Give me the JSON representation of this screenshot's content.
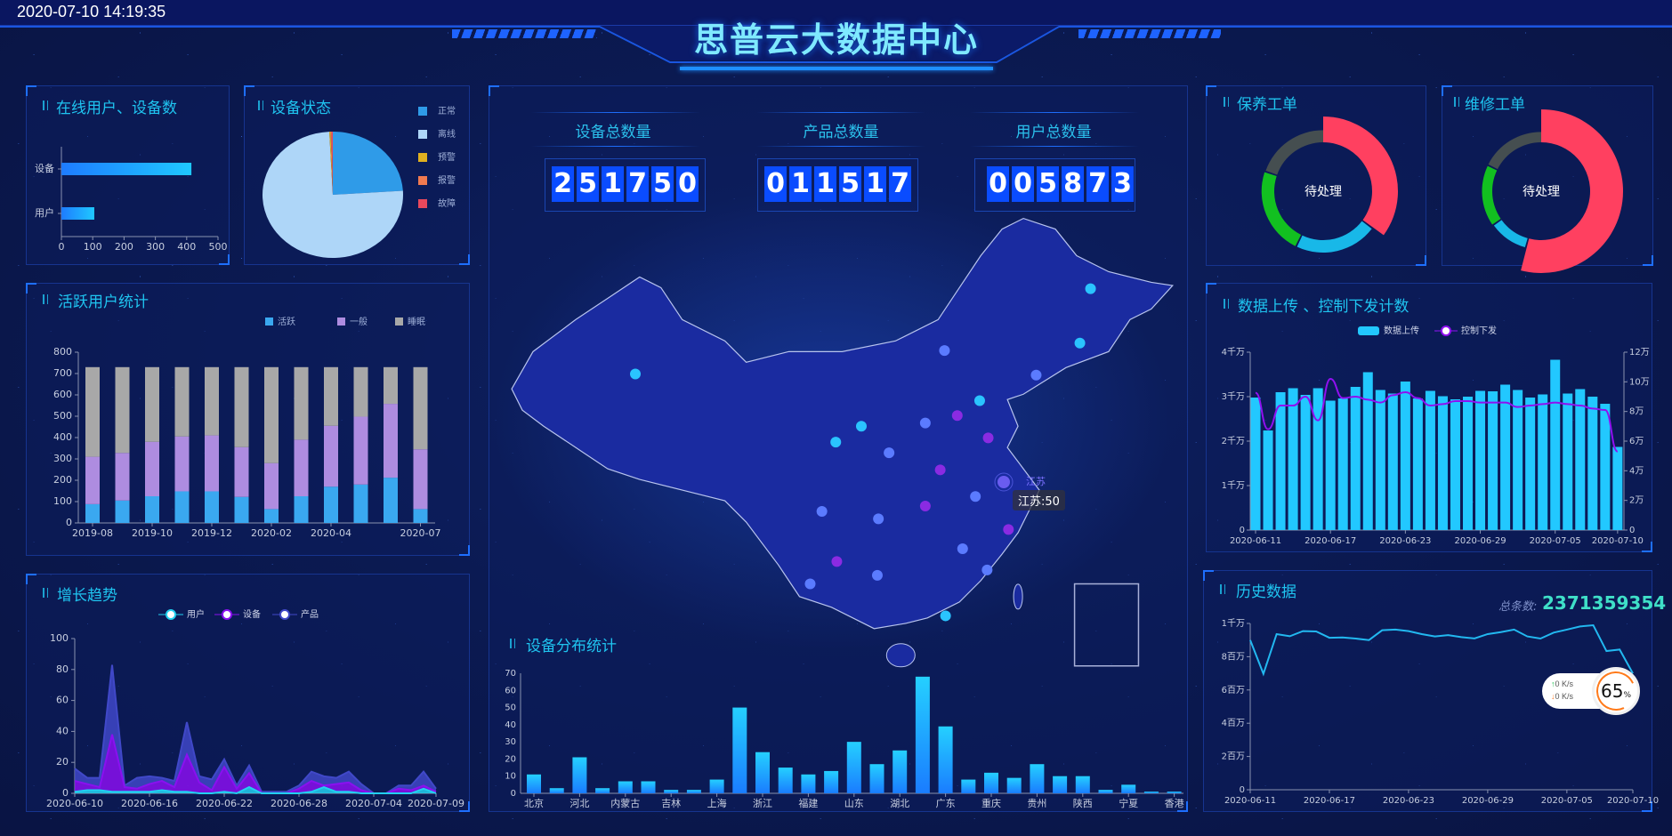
{
  "header": {
    "datetime": "2020-07-10 14:19:35",
    "title": "思普云大数据中心"
  },
  "panels": {
    "online": {
      "title": "在线用户、设备数"
    },
    "status": {
      "title": "设备状态"
    },
    "active": {
      "title": "活跃用户统计"
    },
    "growth": {
      "title": "增长趋势"
    },
    "maintenance": {
      "title": "保养工单",
      "center": "待处理"
    },
    "repair": {
      "title": "维修工单",
      "center": "待处理"
    },
    "upload": {
      "title": "数据上传 、控制下发计数"
    },
    "history": {
      "title": "历史数据",
      "total_label": "总条数:",
      "total_value": "2371359354"
    },
    "distribution": {
      "title": "设备分布统计"
    }
  },
  "stats": [
    {
      "label": "设备总数量",
      "value": "251750"
    },
    {
      "label": "产品总数量",
      "value": "011517"
    },
    {
      "label": "用户总数量",
      "value": "005873"
    }
  ],
  "map": {
    "highlight_label": "江苏",
    "tooltip": "江苏:50",
    "dot_colors": [
      "#2ac4ff",
      "#5b7bff",
      "#8a2be2"
    ],
    "fill": "#1a2ba0",
    "stroke": "#b8c4ee"
  },
  "net_widget": {
    "up": "0",
    "down": "0",
    "unit": "K/s",
    "percent": "65",
    "percent_sign": "%"
  },
  "chart_data": [
    {
      "type": "bar",
      "orientation": "horizontal",
      "categories": [
        "设备",
        "用户"
      ],
      "values": [
        415,
        105
      ],
      "xlim": [
        0,
        500
      ],
      "xticks": [
        0,
        100,
        200,
        300,
        400,
        500
      ],
      "color": "#1fc8ff"
    },
    {
      "type": "pie",
      "labels": [
        "正常",
        "离线",
        "预警",
        "报警",
        "故障"
      ],
      "values": [
        240,
        752,
        3,
        2,
        3
      ],
      "colors": [
        "#2f9be8",
        "#aed6f8",
        "#e0b020",
        "#f07a50",
        "#e8485c"
      ],
      "legend": "right"
    },
    {
      "type": "bar",
      "stacked": true,
      "categories": [
        "2019-08",
        "2019-09",
        "2019-10",
        "2019-11",
        "2019-12",
        "2020-01",
        "2020-02",
        "2020-03",
        "2020-04",
        "2020-05",
        "2020-06",
        "2020-07"
      ],
      "xtick_labels": [
        "2019-08",
        "",
        "2019-10",
        "",
        "2019-12",
        "",
        "2020-02",
        "",
        "2020-04",
        "",
        "",
        "2020-07"
      ],
      "series": [
        {
          "name": "活跃",
          "color": "#3aa8f0",
          "values": [
            88,
            105,
            125,
            148,
            148,
            122,
            65,
            125,
            170,
            180,
            212,
            65
          ]
        },
        {
          "name": "一般",
          "color": "#ae8ce0",
          "values": [
            222,
            223,
            255,
            257,
            262,
            233,
            215,
            265,
            285,
            318,
            346,
            280
          ]
        },
        {
          "name": "睡眠",
          "color": "#a8a8a8",
          "values": [
            420,
            402,
            350,
            325,
            320,
            375,
            450,
            340,
            275,
            232,
            172,
            385
          ]
        }
      ],
      "ylim": [
        0,
        800
      ],
      "yticks": [
        0,
        100,
        200,
        300,
        400,
        500,
        600,
        700,
        800
      ],
      "legend": "top-right"
    },
    {
      "type": "area",
      "stacked": true,
      "x": [
        "2020-06-10",
        "2020-06-11",
        "2020-06-12",
        "2020-06-13",
        "2020-06-14",
        "2020-06-15",
        "2020-06-16",
        "2020-06-17",
        "2020-06-18",
        "2020-06-19",
        "2020-06-20",
        "2020-06-21",
        "2020-06-22",
        "2020-06-23",
        "2020-06-24",
        "2020-06-25",
        "2020-06-26",
        "2020-06-27",
        "2020-06-28",
        "2020-06-29",
        "2020-06-30",
        "2020-07-01",
        "2020-07-02",
        "2020-07-03",
        "2020-07-04",
        "2020-07-05",
        "2020-07-06",
        "2020-07-07",
        "2020-07-08",
        "2020-07-09"
      ],
      "series": [
        {
          "name": "用户",
          "color": "#22d0f0",
          "values": [
            1,
            2,
            2,
            1,
            1,
            1,
            1,
            2,
            1,
            1,
            0,
            0,
            1,
            0,
            4,
            0,
            0,
            0,
            0,
            1,
            4,
            1,
            1,
            0,
            0,
            0,
            0,
            0,
            3,
            0
          ]
        },
        {
          "name": "设备",
          "color": "#8a10f0",
          "values": [
            7,
            4,
            2,
            37,
            3,
            2,
            5,
            6,
            3,
            24,
            7,
            2,
            16,
            3,
            9,
            0,
            0,
            0,
            3,
            7,
            1,
            5,
            6,
            2,
            0,
            0,
            3,
            2,
            2,
            1
          ]
        },
        {
          "name": "产品",
          "color": "#4048c8",
          "values": [
            8,
            4,
            6,
            45,
            1,
            7,
            5,
            2,
            4,
            21,
            4,
            7,
            5,
            2,
            5,
            1,
            1,
            1,
            2,
            6,
            6,
            4,
            7,
            4,
            0,
            0,
            2,
            3,
            9,
            2
          ]
        }
      ],
      "ylim": [
        0,
        100
      ],
      "yticks": [
        0,
        20,
        40,
        60,
        80,
        100
      ],
      "legend": "top"
    },
    {
      "type": "bar",
      "categories": [
        "北京",
        "",
        "河北",
        "",
        "内蒙古",
        "",
        "吉林",
        "",
        "上海",
        "江苏",
        "浙江",
        "",
        "福建",
        "",
        "山东",
        "",
        "湖北",
        "",
        "广东",
        "",
        "重庆",
        "",
        "贵州",
        "",
        "陕西",
        "",
        "宁夏",
        "",
        "香港"
      ],
      "values": [
        11,
        3,
        21,
        3,
        7,
        7,
        2,
        2,
        8,
        50,
        24,
        15,
        11,
        13,
        30,
        17,
        25,
        68,
        39,
        8,
        12,
        9,
        17,
        10,
        10,
        2,
        5,
        1,
        1
      ],
      "ylim": [
        0,
        70
      ],
      "yticks": [
        0,
        10,
        20,
        30,
        40,
        50,
        60,
        70
      ]
    },
    {
      "type": "pie",
      "variant": "rose-donut",
      "values": [
        35,
        22,
        23,
        20
      ],
      "colors": [
        "#ff4060",
        "#18b8e8",
        "#12c020",
        "#454e50"
      ]
    },
    {
      "type": "pie",
      "variant": "rose-donut",
      "values": [
        54,
        11,
        17,
        18
      ],
      "colors": [
        "#ff4060",
        "#18b8e8",
        "#12c020",
        "#454e50"
      ]
    },
    {
      "type": "bar+line",
      "x": [
        "2020-06-11",
        "2020-06-12",
        "2020-06-13",
        "2020-06-14",
        "2020-06-15",
        "2020-06-16",
        "2020-06-17",
        "2020-06-18",
        "2020-06-19",
        "2020-06-20",
        "2020-06-21",
        "2020-06-22",
        "2020-06-23",
        "2020-06-24",
        "2020-06-25",
        "2020-06-26",
        "2020-06-27",
        "2020-06-28",
        "2020-06-29",
        "2020-06-30",
        "2020-07-01",
        "2020-07-02",
        "2020-07-03",
        "2020-07-04",
        "2020-07-05",
        "2020-07-06",
        "2020-07-07",
        "2020-07-08",
        "2020-07-09",
        "2020-07-10"
      ],
      "series": [
        {
          "name": "数据上传",
          "axis": "left",
          "color": "#22c8ff",
          "values": [
            29800000,
            22400000,
            31000000,
            31900000,
            30400000,
            31900000,
            29100000,
            29600000,
            32200000,
            35500000,
            31500000,
            30700000,
            33400000,
            29600000,
            31300000,
            30100000,
            29400000,
            30000000,
            31300000,
            31200000,
            32700000,
            31500000,
            29800000,
            30500000,
            38300000,
            30700000,
            31700000,
            30000000,
            28400000,
            18700000
          ]
        },
        {
          "name": "控制下发",
          "axis": "right",
          "color": "#9010f0",
          "values": [
            92600,
            68000,
            84000,
            84000,
            90000,
            74000,
            102000,
            89000,
            90000,
            88000,
            86000,
            91000,
            93000,
            89000,
            84000,
            85000,
            87000,
            87000,
            86000,
            86000,
            86000,
            83000,
            84000,
            85000,
            86000,
            85000,
            84000,
            82000,
            81000,
            53000
          ]
        }
      ],
      "ylim_left": [
        0,
        40000000
      ],
      "yticks_left": [
        "0",
        "1千万",
        "2千万",
        "3千万",
        "4千万"
      ],
      "ylim_right": [
        0,
        120000
      ],
      "yticks_right": [
        "0",
        "2万",
        "4万",
        "6万",
        "8万",
        "10万",
        "12万"
      ],
      "legend": "top"
    },
    {
      "type": "line",
      "x": [
        "2020-06-11",
        "2020-06-12",
        "2020-06-13",
        "2020-06-14",
        "2020-06-15",
        "2020-06-16",
        "2020-06-17",
        "2020-06-18",
        "2020-06-19",
        "2020-06-20",
        "2020-06-21",
        "2020-06-22",
        "2020-06-23",
        "2020-06-24",
        "2020-06-25",
        "2020-06-26",
        "2020-06-27",
        "2020-06-28",
        "2020-06-29",
        "2020-06-30",
        "2020-07-01",
        "2020-07-02",
        "2020-07-03",
        "2020-07-04",
        "2020-07-05",
        "2020-07-06",
        "2020-07-07",
        "2020-07-08",
        "2020-07-09",
        "2020-07-10"
      ],
      "values": [
        9000000,
        6970000,
        9360000,
        9230000,
        9540000,
        9520000,
        9140000,
        9160000,
        9090000,
        9000000,
        9590000,
        9630000,
        9540000,
        9360000,
        9220000,
        9300000,
        9180000,
        9100000,
        9360000,
        9480000,
        9630000,
        9220000,
        9090000,
        9450000,
        9630000,
        9820000,
        9890000,
        8340000,
        8430000,
        7000000
      ],
      "ylim": [
        0,
        10000000
      ],
      "yticks": [
        "0",
        "2百万",
        "4百万",
        "6百万",
        "8百万",
        "1千万"
      ],
      "color": "#22b8f0"
    }
  ]
}
